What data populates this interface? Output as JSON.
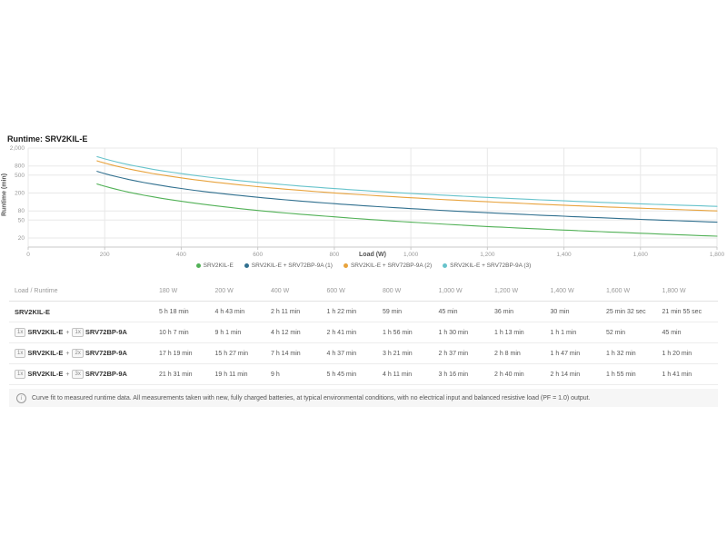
{
  "page": {
    "title": "Runtime: SRV2KIL-E"
  },
  "chart": {
    "y_axis_label": "Runtime (min)",
    "x_axis_label": "Load (W)",
    "y_ticks": [
      {
        "value": 2000,
        "label": "2,000"
      },
      {
        "value": 800,
        "label": "800"
      },
      {
        "value": 500,
        "label": "500"
      },
      {
        "value": 200,
        "label": "200"
      },
      {
        "value": 80,
        "label": "80"
      },
      {
        "value": 50,
        "label": "50"
      },
      {
        "value": 20,
        "label": "20"
      }
    ],
    "x_ticks": [
      {
        "value": 0,
        "label": "0"
      },
      {
        "value": 200,
        "label": "200"
      },
      {
        "value": 400,
        "label": "400"
      },
      {
        "value": 600,
        "label": "600"
      },
      {
        "value": 800,
        "label": "800"
      },
      {
        "value": 1000,
        "label": "1,000"
      },
      {
        "value": 1200,
        "label": "1,200"
      },
      {
        "value": 1400,
        "label": "1,400"
      },
      {
        "value": 1600,
        "label": "1,600"
      },
      {
        "value": 1800,
        "label": "1,800"
      }
    ]
  },
  "chart_data": {
    "type": "line",
    "title": "Runtime: SRV2KIL-E",
    "xlabel": "Load (W)",
    "ylabel": "Runtime (min)",
    "x": [
      180,
      200,
      400,
      600,
      800,
      1000,
      1200,
      1400,
      1600,
      1800
    ],
    "series": [
      {
        "name": "SRV2KIL-E",
        "color": "#52b157",
        "values": [
          318,
          283,
          131,
          82,
          59,
          45,
          36,
          30,
          25.5,
          21.9
        ]
      },
      {
        "name": "SRV2KIL-E + SRV72BP-9A (1)",
        "color": "#31708f",
        "values": [
          607,
          541,
          252,
          161,
          116,
          90,
          73,
          61,
          52,
          45
        ]
      },
      {
        "name": "SRV2KIL-E + SRV72BP-9A (2)",
        "color": "#e8a33d",
        "values": [
          1039,
          927,
          434,
          277,
          201,
          157,
          128,
          107,
          92,
          80
        ]
      },
      {
        "name": "SRV2KIL-E + SRV72BP-9A (3)",
        "color": "#67c3cb",
        "values": [
          1291,
          1151,
          540,
          345,
          251,
          196,
          160,
          134,
          115,
          101
        ]
      }
    ],
    "x_range": [
      0,
      1800
    ],
    "y_scale": "log",
    "y_range": [
      20,
      2000
    ],
    "grid": true,
    "legend_position": "bottom"
  },
  "table": {
    "corner_label": "Load / Runtime",
    "columns": [
      "180 W",
      "200 W",
      "400 W",
      "600 W",
      "800 W",
      "1,000 W",
      "1,200 W",
      "1,400 W",
      "1,600 W",
      "1,800 W"
    ],
    "plus_separator": "+",
    "rows": [
      {
        "parts": [
          {
            "qty": null,
            "name": "SRV2KIL-E"
          }
        ],
        "values": [
          "5 h 18 min",
          "4 h 43 min",
          "2 h 11 min",
          "1 h 22 min",
          "59 min",
          "45 min",
          "36 min",
          "30 min",
          "25 min 32 sec",
          "21 min 55 sec"
        ]
      },
      {
        "parts": [
          {
            "qty": "1x",
            "name": "SRV2KIL-E"
          },
          {
            "qty": "1x",
            "name": "SRV72BP-9A"
          }
        ],
        "values": [
          "10 h 7 min",
          "9 h 1 min",
          "4 h 12 min",
          "2 h 41 min",
          "1 h 56 min",
          "1 h 30 min",
          "1 h 13 min",
          "1 h 1 min",
          "52 min",
          "45 min"
        ]
      },
      {
        "parts": [
          {
            "qty": "1x",
            "name": "SRV2KIL-E"
          },
          {
            "qty": "2x",
            "name": "SRV72BP-9A"
          }
        ],
        "values": [
          "17 h 19 min",
          "15 h 27 min",
          "7 h 14 min",
          "4 h 37 min",
          "3 h 21 min",
          "2 h 37 min",
          "2 h 8 min",
          "1 h 47 min",
          "1 h 32 min",
          "1 h 20 min"
        ]
      },
      {
        "parts": [
          {
            "qty": "1x",
            "name": "SRV2KIL-E"
          },
          {
            "qty": "3x",
            "name": "SRV72BP-9A"
          }
        ],
        "values": [
          "21 h 31 min",
          "19 h 11 min",
          "9 h",
          "5 h 45 min",
          "4 h 11 min",
          "3 h 16 min",
          "2 h 40 min",
          "2 h 14 min",
          "1 h 55 min",
          "1 h 41 min"
        ]
      }
    ]
  },
  "footnote": {
    "icon": "info-icon",
    "text": "Curve fit to measured runtime data. All measurements taken with new, fully charged batteries, at typical environmental conditions, with no electrical input and balanced resistive load (PF = 1.0) output."
  }
}
